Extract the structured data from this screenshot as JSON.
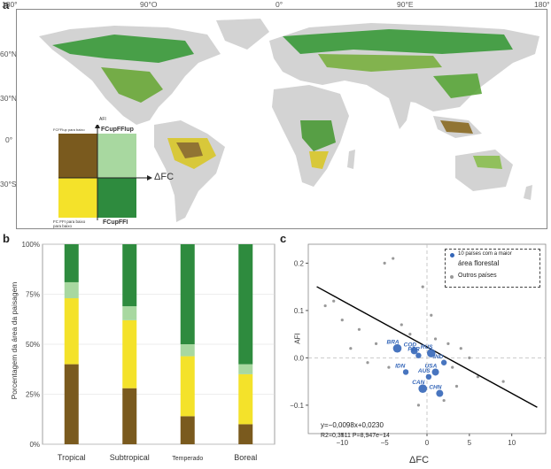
{
  "panel_letters": {
    "a": "a",
    "b": "b",
    "c": "c"
  },
  "map": {
    "lon_ticks": [
      "180°",
      "90°O",
      "0°",
      "90°E",
      "180°"
    ],
    "lat_ticks": [
      "60°N",
      "30°N",
      "0°",
      "30°S"
    ],
    "colors": {
      "land": "#d3d3d3",
      "ocean": "#ffffff",
      "dark_green": "#2e8b3e",
      "light_green": "#a8d8a0",
      "yellow": "#f4e22a",
      "brown": "#7a5a1e"
    },
    "legend": {
      "y_axis": "AFI",
      "x_axis": "ΔFC",
      "top_left_text": "FCFFIup para baixo",
      "top_right_text": "FCupFFIup",
      "bottom_left_text": "FC FFI para baixo para baixo",
      "bottom_right_text": "FCupFFI"
    }
  },
  "bar_panel": {
    "ylabel": "Porcentagem da área da paisagem",
    "yticks": [
      "0%",
      "25%",
      "50%",
      "75%",
      "100%"
    ]
  },
  "scatter_panel": {
    "xlabel": "ΔFC",
    "ylabel": "AFI",
    "xticks": [
      "−10",
      "−5",
      "0",
      "5",
      "10"
    ],
    "yticks": [
      "−0.1",
      "0.0",
      "0.1",
      "0.2"
    ],
    "legend": {
      "top": "10 países com a maior",
      "top2": "área florestal",
      "other": "Outros países"
    },
    "equation": "y=−0,0098x+0,0230",
    "stats": "R2=0,3511 P=8,947e−14",
    "country_labels": [
      "BRA",
      "COD",
      "RUS",
      "USA",
      "IDN",
      "IND",
      "CAN",
      "CHN",
      "AUS",
      "PER"
    ]
  },
  "chart_data": [
    {
      "type": "bar",
      "stacked": true,
      "categories": [
        "Tropical",
        "Subtropical",
        "Temperado",
        "Boreal"
      ],
      "series": [
        {
          "name": "",
          "color": "#7a5a1e",
          "values": [
            40,
            28,
            14,
            10
          ]
        },
        {
          "name": "",
          "color": "#f4e22a",
          "values": [
            33,
            34,
            30,
            25
          ]
        },
        {
          "name": "",
          "color": "#a8d8a0",
          "values": [
            8,
            7,
            6,
            5
          ]
        },
        {
          "name": "",
          "color": "#2e8b3e",
          "values": [
            19,
            31,
            50,
            60
          ]
        }
      ],
      "ylim": [
        0,
        100
      ],
      "xlabel": "",
      "ylabel": "Porcentagem da área da paisagem",
      "grid": true
    },
    {
      "type": "scatter",
      "xlabel": "ΔFC",
      "ylabel": "AFI",
      "xlim": [
        -14,
        14
      ],
      "ylim": [
        -0.16,
        0.24
      ],
      "grid": false,
      "legend_position": "top-right",
      "fit": {
        "slope": -0.0098,
        "intercept": 0.023,
        "x_range": [
          -13,
          13
        ]
      },
      "top_countries": [
        {
          "label": "BRA",
          "x": -3.5,
          "y": 0.02,
          "size": 6
        },
        {
          "label": "COD",
          "x": -1.5,
          "y": 0.015,
          "size": 5
        },
        {
          "label": "RUS",
          "x": 0.5,
          "y": 0.01,
          "size": 6
        },
        {
          "label": "USA",
          "x": 1.0,
          "y": -0.03,
          "size": 5
        },
        {
          "label": "IDN",
          "x": -2.5,
          "y": -0.03,
          "size": 4
        },
        {
          "label": "IND",
          "x": 2.0,
          "y": -0.01,
          "size": 4
        },
        {
          "label": "CAN",
          "x": -0.5,
          "y": -0.065,
          "size": 6
        },
        {
          "label": "CHN",
          "x": 1.5,
          "y": -0.075,
          "size": 5
        },
        {
          "label": "AUS",
          "x": 0.2,
          "y": -0.04,
          "size": 4
        },
        {
          "label": "PER",
          "x": -1.0,
          "y": 0.005,
          "size": 4
        }
      ],
      "other_countries": [
        {
          "x": -12,
          "y": 0.11
        },
        {
          "x": -10,
          "y": 0.08
        },
        {
          "x": -8,
          "y": 0.06
        },
        {
          "x": -5,
          "y": 0.2
        },
        {
          "x": -6,
          "y": 0.03
        },
        {
          "x": -4,
          "y": 0.21
        },
        {
          "x": -3,
          "y": 0.07
        },
        {
          "x": -7,
          "y": -0.01
        },
        {
          "x": -2,
          "y": 0.05
        },
        {
          "x": 1,
          "y": 0.04
        },
        {
          "x": 3,
          "y": -0.02
        },
        {
          "x": 4,
          "y": 0.02
        },
        {
          "x": 6,
          "y": -0.04
        },
        {
          "x": 9,
          "y": -0.05
        },
        {
          "x": 2,
          "y": -0.09
        },
        {
          "x": -1,
          "y": -0.1
        },
        {
          "x": 5,
          "y": 0.0
        },
        {
          "x": -9,
          "y": 0.02
        },
        {
          "x": -11,
          "y": 0.12
        },
        {
          "x": 2.5,
          "y": 0.03
        },
        {
          "x": -4.5,
          "y": -0.02
        },
        {
          "x": 3.5,
          "y": -0.06
        },
        {
          "x": 0.5,
          "y": 0.09
        },
        {
          "x": -0.5,
          "y": 0.15
        }
      ]
    }
  ]
}
